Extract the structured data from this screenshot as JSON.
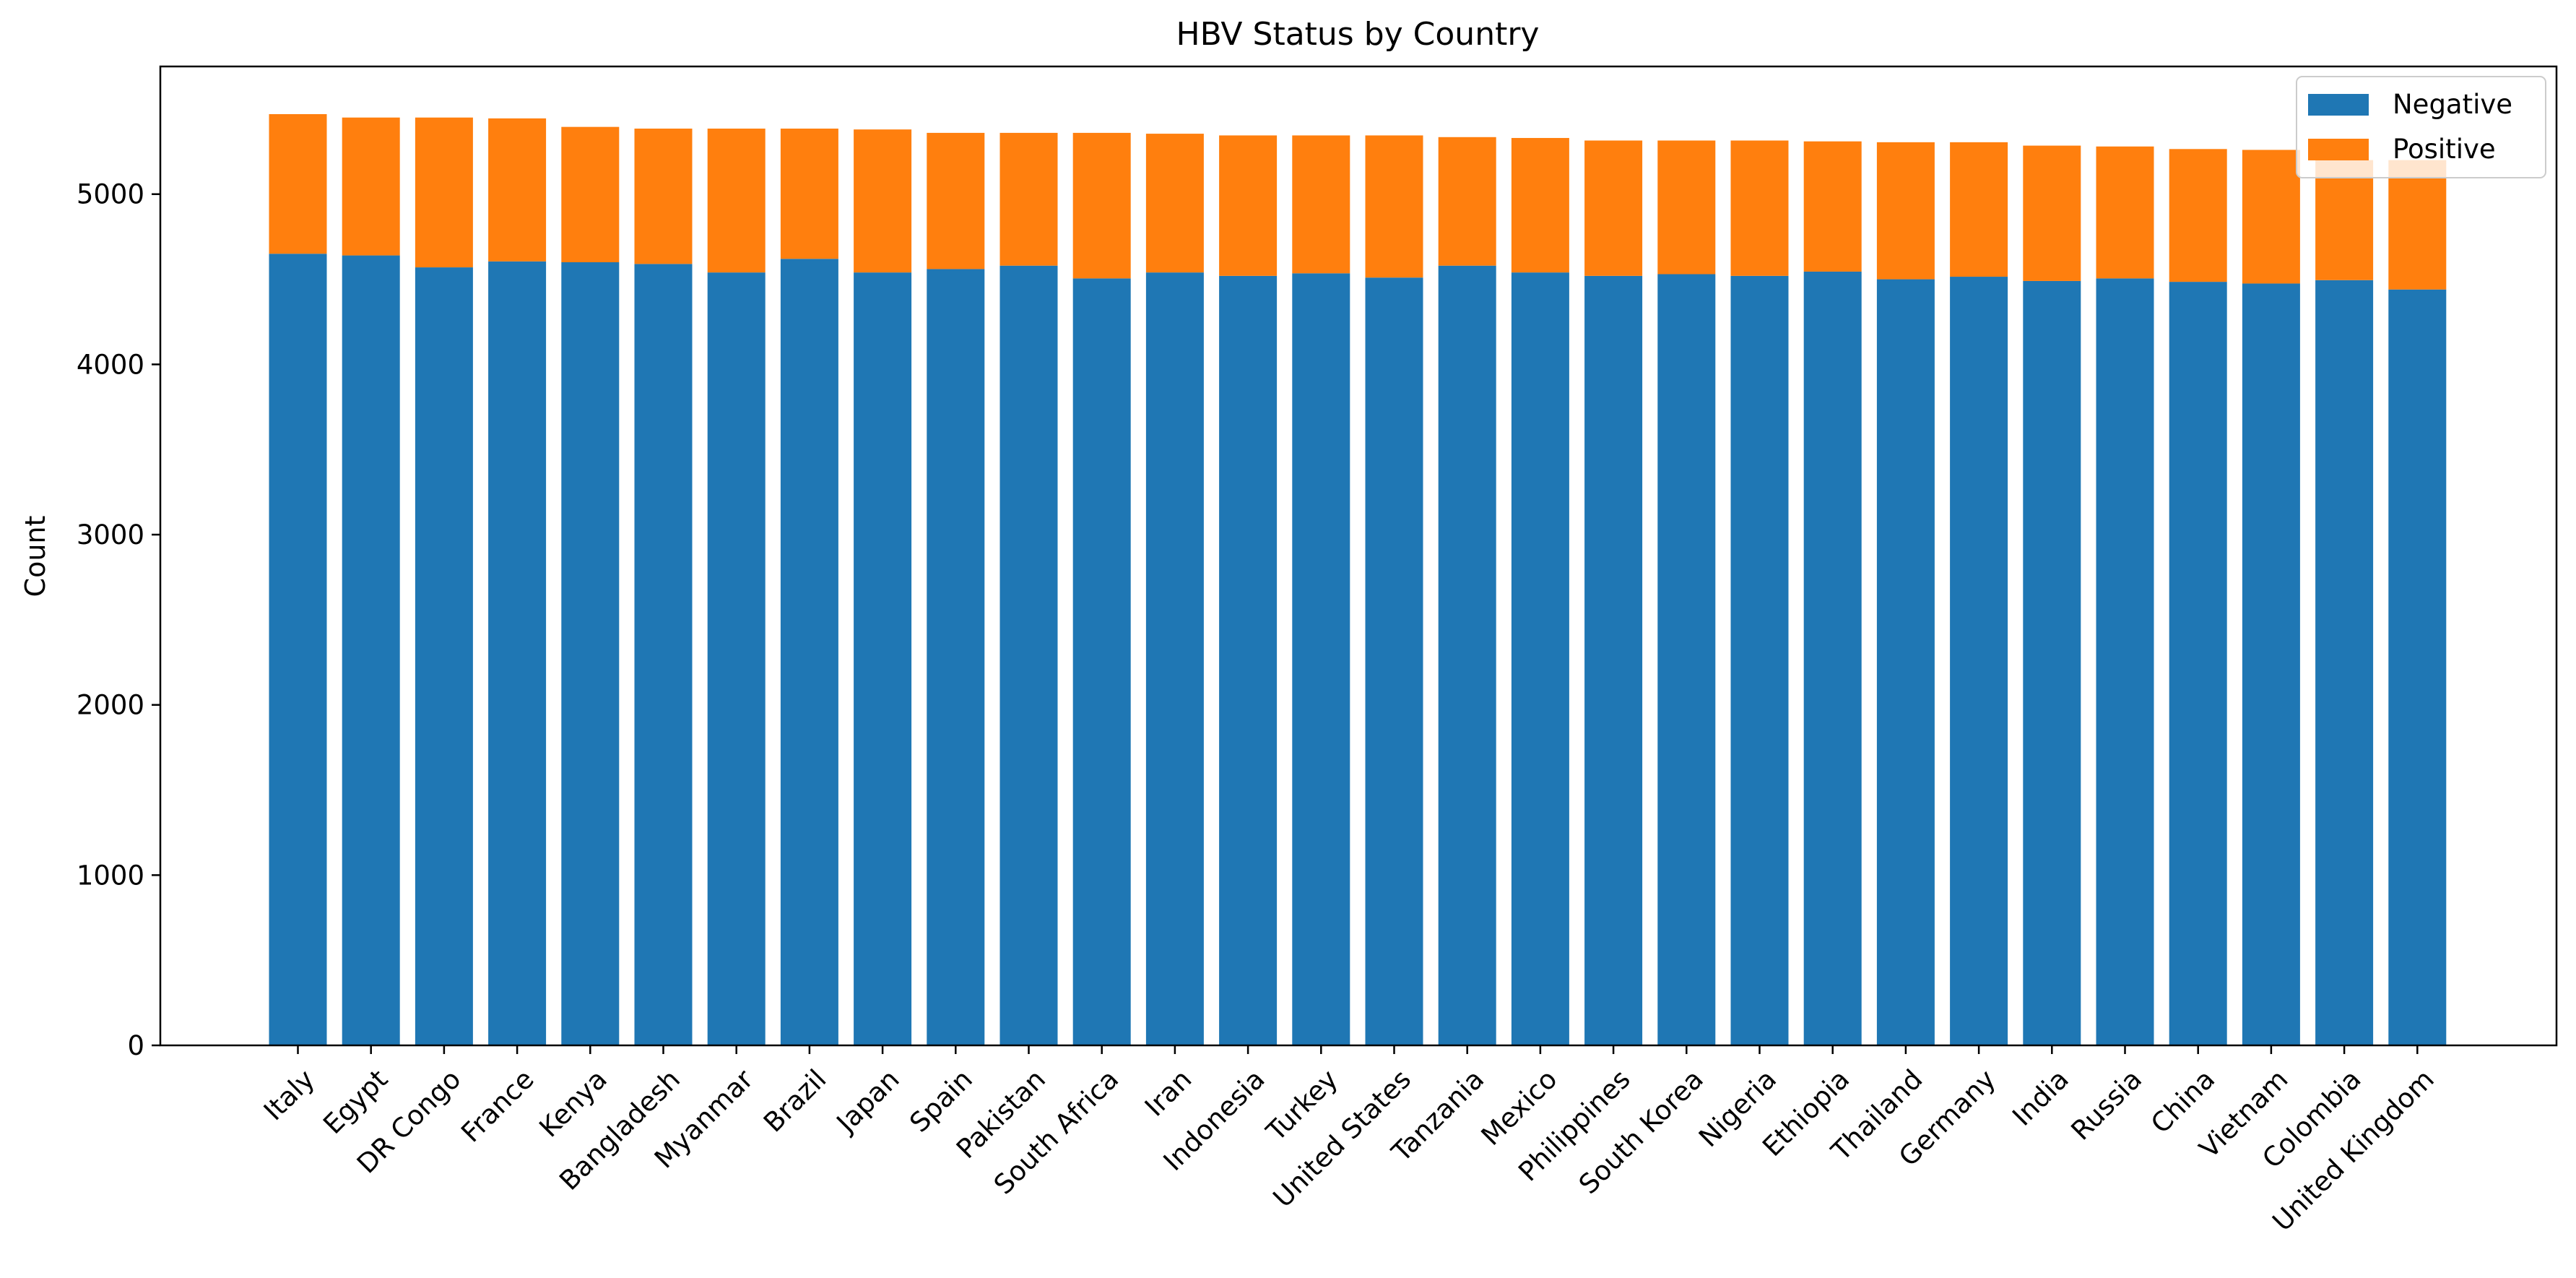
{
  "chart_data": {
    "type": "bar",
    "stacked": true,
    "title": "HBV Status by Country",
    "xlabel": "",
    "ylabel": "Count",
    "ylim": [
      0,
      5750
    ],
    "yticks": [
      0,
      1000,
      2000,
      3000,
      4000,
      5000
    ],
    "grid": false,
    "legend_position": "top-right",
    "categories": [
      "Italy",
      "Egypt",
      "DR Congo",
      "France",
      "Kenya",
      "Bangladesh",
      "Myanmar",
      "Brazil",
      "Japan",
      "Spain",
      "Pakistan",
      "South Africa",
      "Iran",
      "Indonesia",
      "Turkey",
      "United States",
      "Tanzania",
      "Mexico",
      "Philippines",
      "South Korea",
      "Nigeria",
      "Ethiopia",
      "Thailand",
      "Germany",
      "India",
      "Russia",
      "China",
      "Vietnam",
      "Colombia",
      "United Kingdom"
    ],
    "series": [
      {
        "name": "Negative",
        "color": "#1f77b4",
        "values": [
          4650,
          4640,
          4570,
          4605,
          4600,
          4590,
          4540,
          4620,
          4540,
          4560,
          4580,
          4505,
          4540,
          4520,
          4535,
          4510,
          4580,
          4540,
          4520,
          4530,
          4520,
          4545,
          4500,
          4515,
          4490,
          4505,
          4485,
          4475,
          4495,
          4440
        ]
      },
      {
        "name": "Positive",
        "color": "#ff7f0e",
        "values": [
          820,
          810,
          880,
          840,
          795,
          795,
          845,
          765,
          840,
          800,
          780,
          855,
          815,
          825,
          810,
          835,
          755,
          790,
          795,
          785,
          795,
          765,
          805,
          790,
          795,
          775,
          780,
          785,
          705,
          760
        ]
      }
    ]
  }
}
